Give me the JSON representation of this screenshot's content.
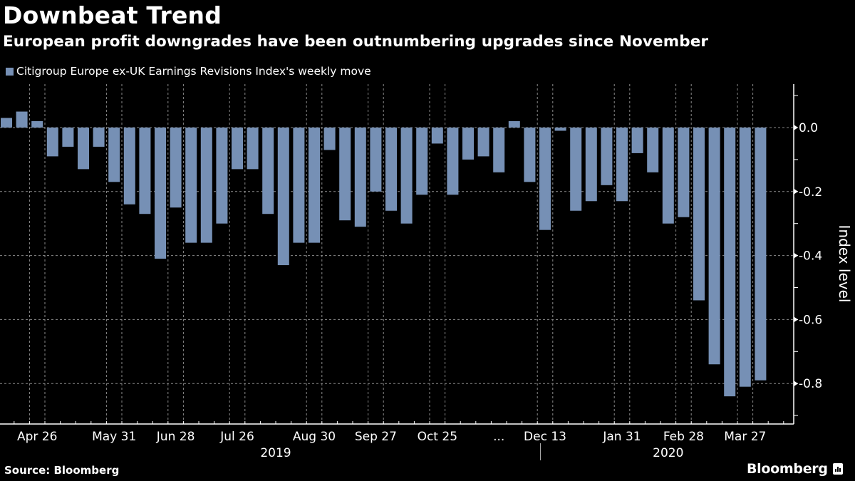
{
  "header": {
    "title": "Downbeat Trend",
    "subtitle": "European profit downgrades have been outnumbering upgrades since November"
  },
  "footer": {
    "source": "Source: Bloomberg",
    "brand": "Bloomberg"
  },
  "colors": {
    "bar": "#7690b5",
    "background": "#000000",
    "text": "#ffffff",
    "grid": "#8a8a8a"
  },
  "chart_data": {
    "type": "bar",
    "title": "Downbeat Trend",
    "subtitle": "European profit downgrades have been outnumbering upgrades since November",
    "legend": [
      "Citigroup Europe ex-UK Earnings Revisions Index's weekly move"
    ],
    "legend_position": "top-left",
    "ylabel": "Index level",
    "xlabel": "",
    "y_axis_side": "right",
    "ylim": [
      -0.93,
      0.13
    ],
    "yticks": [
      0.0,
      -0.2,
      -0.4,
      -0.6,
      -0.8
    ],
    "ytick_labels": [
      "0.0",
      "-0.2",
      "-0.4",
      "-0.6",
      "-0.8"
    ],
    "grid": true,
    "xtick_labels": [
      {
        "label": "Apr 26",
        "bar_index": 2
      },
      {
        "label": "May 31",
        "bar_index": 7
      },
      {
        "label": "Jun 28",
        "bar_index": 11
      },
      {
        "label": "Jul 26",
        "bar_index": 15
      },
      {
        "label": "Aug 30",
        "bar_index": 20
      },
      {
        "label": "Sep 27",
        "bar_index": 24
      },
      {
        "label": "Oct 25",
        "bar_index": 28
      },
      {
        "label": "...",
        "bar_index": 32
      },
      {
        "label": "Dec 13",
        "bar_index": 35
      },
      {
        "label": "Jan 31",
        "bar_index": 40
      },
      {
        "label": "Feb 28",
        "bar_index": 44
      },
      {
        "label": "Mar 27",
        "bar_index": 48
      }
    ],
    "year_labels": [
      {
        "label": "2019",
        "bar_index": 17.5
      },
      {
        "label": "2020",
        "bar_index": 43
      }
    ],
    "year_divider_bar_index": 34.7,
    "series": [
      {
        "name": "Citigroup Europe ex-UK Earnings Revisions Index's weekly move",
        "values": [
          0.03,
          0.05,
          0.02,
          -0.09,
          -0.06,
          -0.13,
          -0.06,
          -0.17,
          -0.24,
          -0.27,
          -0.41,
          -0.25,
          -0.36,
          -0.36,
          -0.3,
          -0.13,
          -0.13,
          -0.27,
          -0.43,
          -0.36,
          -0.36,
          -0.07,
          -0.29,
          -0.31,
          -0.2,
          -0.26,
          -0.3,
          -0.21,
          -0.05,
          -0.21,
          -0.1,
          -0.09,
          -0.14,
          0.02,
          -0.17,
          -0.32,
          -0.01,
          -0.26,
          -0.23,
          -0.18,
          -0.23,
          -0.08,
          -0.14,
          -0.3,
          -0.28,
          -0.54,
          -0.74,
          -0.84,
          -0.81,
          -0.79
        ]
      }
    ]
  }
}
